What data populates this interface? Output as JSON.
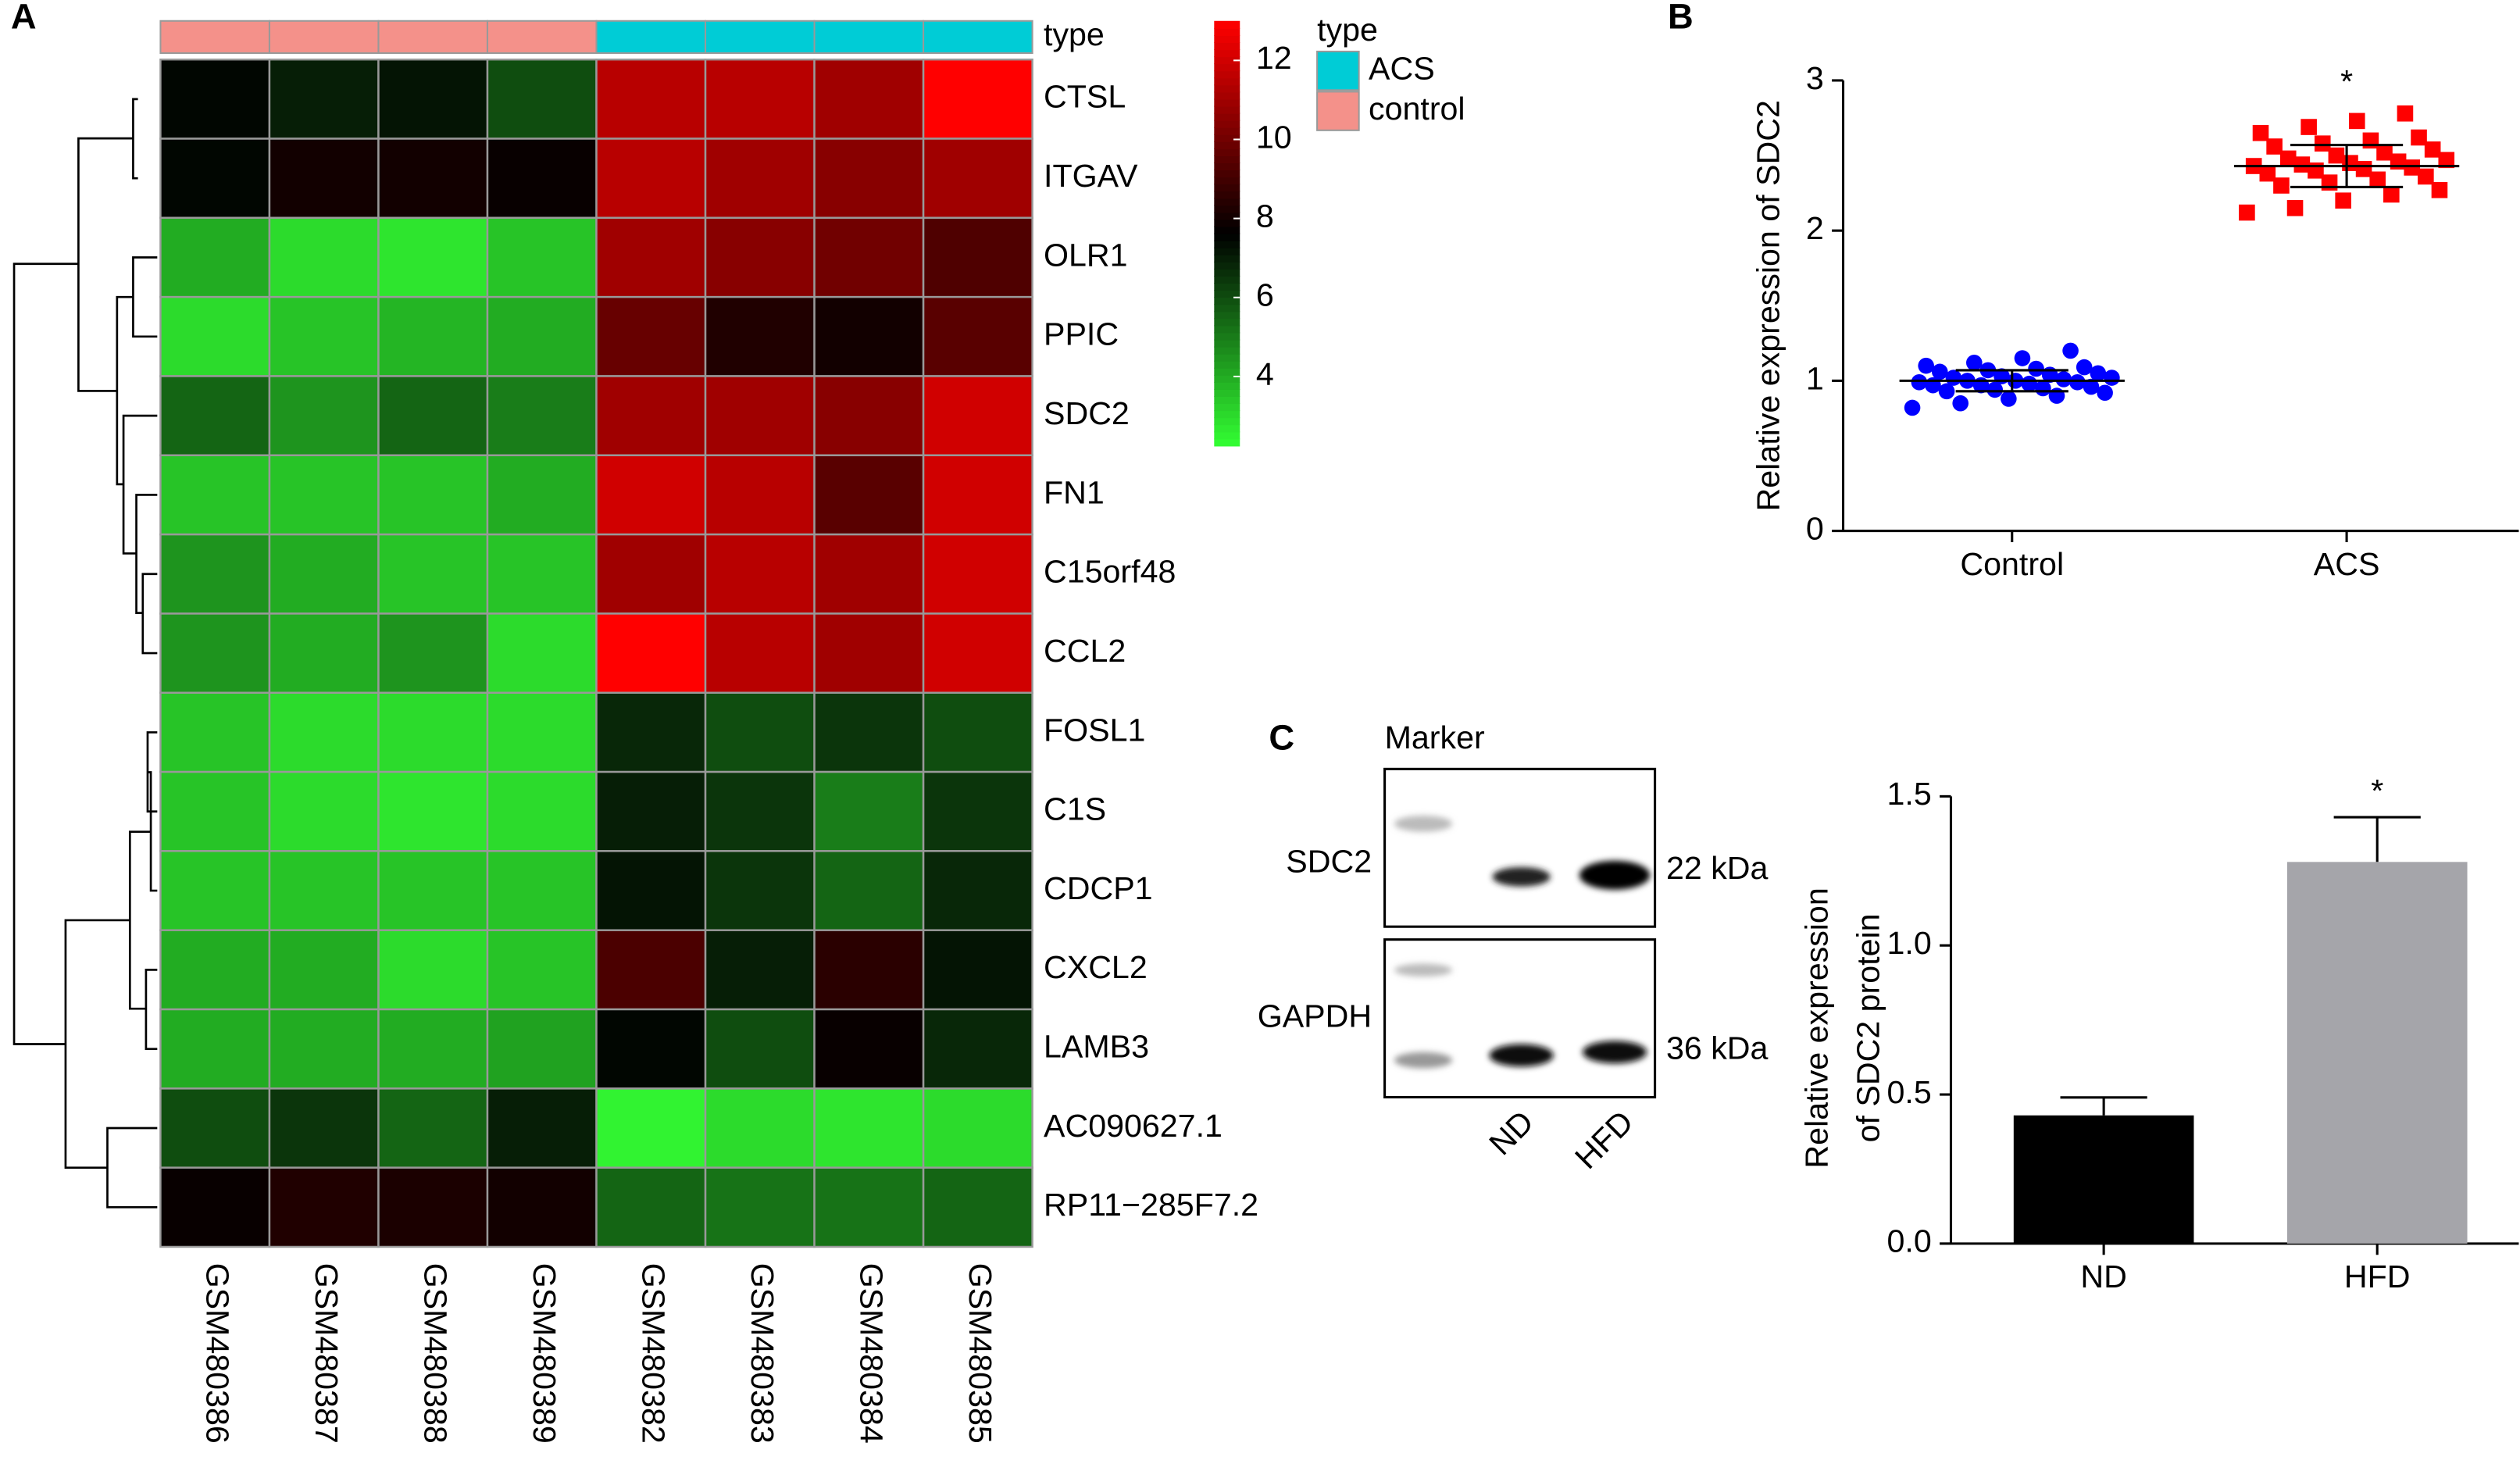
{
  "chart_data": [
    {
      "type": "heatmap",
      "panel": "A",
      "rows": [
        "CTSL",
        "ITGAV",
        "OLR1",
        "PPIC",
        "SDC2",
        "FN1",
        "C15orf48",
        "CCL2",
        "FOSL1",
        "C1S",
        "CDCP1",
        "CXCL2",
        "LAMB3",
        "AC090627.1",
        "RP11−285F7.2"
      ],
      "columns": [
        "GSM480386",
        "GSM480387",
        "GSM480388",
        "GSM480389",
        "GSM480382",
        "GSM480383",
        "GSM480384",
        "GSM480385"
      ],
      "values": [
        [
          7.5,
          7,
          7.2,
          6,
          11.5,
          11.5,
          11,
          13
        ],
        [
          7.5,
          8,
          8,
          7.8,
          11.5,
          11,
          10.5,
          11
        ],
        [
          4,
          3,
          2.8,
          3.5,
          11,
          10.5,
          10,
          9.3
        ],
        [
          3,
          3.5,
          3.8,
          4,
          9.8,
          8.3,
          8,
          9.5
        ],
        [
          5.5,
          4.5,
          5.5,
          5,
          11,
          11,
          10.5,
          12
        ],
        [
          3.5,
          3.5,
          3.5,
          4,
          12,
          11.5,
          9.5,
          12
        ],
        [
          4.5,
          4,
          3.5,
          3.5,
          11,
          11.5,
          11,
          12
        ],
        [
          4.5,
          4,
          4.5,
          3,
          13,
          11.5,
          11,
          12
        ],
        [
          3.5,
          3,
          3,
          3,
          6.8,
          6,
          6.5,
          6
        ],
        [
          3.5,
          3,
          2.8,
          3,
          7,
          6.5,
          5,
          6.5
        ],
        [
          3.5,
          3.5,
          3.5,
          3.5,
          7.2,
          6.5,
          5.5,
          6.8
        ],
        [
          4,
          4,
          3,
          3.5,
          9.2,
          7,
          8.5,
          7.2
        ],
        [
          4,
          4,
          4,
          4.2,
          7.5,
          6,
          7.8,
          6.8
        ],
        [
          6,
          6.5,
          5.5,
          7,
          2.5,
          3,
          2.8,
          3
        ],
        [
          7.8,
          8.3,
          8.2,
          8,
          5.5,
          5.2,
          5.2,
          5.5
        ]
      ],
      "clim": [
        2.25,
        13
      ],
      "cticks": [
        4,
        6,
        8,
        10,
        12
      ],
      "colors": [
        "#33ff33",
        "#000000",
        "#ff0000"
      ],
      "annotation": {
        "title": "type",
        "levels": [
          "ACS",
          "control"
        ],
        "colors": [
          "#00ccd6",
          "#f4918a"
        ],
        "groups": [
          1,
          1,
          1,
          1,
          0,
          0,
          0,
          0
        ]
      }
    },
    {
      "type": "strip",
      "panel": "B",
      "ylabel": "Relative expression of SDC2",
      "ylim": [
        0,
        3
      ],
      "yticks": [
        0,
        1,
        2,
        3
      ],
      "annotation": "*",
      "groups": [
        {
          "name": "Control",
          "color": "#0000ff",
          "mean": 1.0,
          "sd": 0.07,
          "values": [
            0.82,
            0.85,
            0.88,
            0.9,
            0.92,
            0.93,
            0.94,
            0.95,
            0.96,
            0.97,
            0.97,
            0.98,
            0.99,
            0.99,
            1.0,
            1.0,
            1.01,
            1.02,
            1.02,
            1.03,
            1.04,
            1.05,
            1.06,
            1.07,
            1.08,
            1.09,
            1.1,
            1.12,
            1.15,
            1.2
          ]
        },
        {
          "name": "ACS",
          "color": "#ff0000",
          "mean": 2.43,
          "sd": 0.14,
          "values": [
            2.12,
            2.15,
            2.2,
            2.24,
            2.27,
            2.3,
            2.32,
            2.34,
            2.36,
            2.38,
            2.4,
            2.41,
            2.42,
            2.43,
            2.44,
            2.45,
            2.46,
            2.47,
            2.48,
            2.5,
            2.52,
            2.54,
            2.56,
            2.58,
            2.6,
            2.62,
            2.65,
            2.69,
            2.73,
            2.78
          ]
        }
      ]
    },
    {
      "type": "bar",
      "panel": "C",
      "ylabel": [
        "Relative expression",
        "of SDC2 protein"
      ],
      "categories": [
        "ND",
        "HFD"
      ],
      "values": [
        0.43,
        1.28
      ],
      "errors": [
        0.06,
        0.15
      ],
      "colors": [
        "#000000",
        "#a5a5aa"
      ],
      "ylim": [
        0,
        1.5
      ],
      "yticks": [
        {
          "value": 0,
          "label": "0.0"
        },
        0.5,
        {
          "value": 1,
          "label": "1.0"
        },
        1.5
      ],
      "annotation": "*"
    }
  ],
  "blot": {
    "marker": "Marker",
    "proteins": [
      "SDC2",
      "GAPDH"
    ],
    "sizes": [
      "22 kDa",
      "36 kDa"
    ],
    "lanes": [
      "ND",
      "HFD"
    ]
  }
}
